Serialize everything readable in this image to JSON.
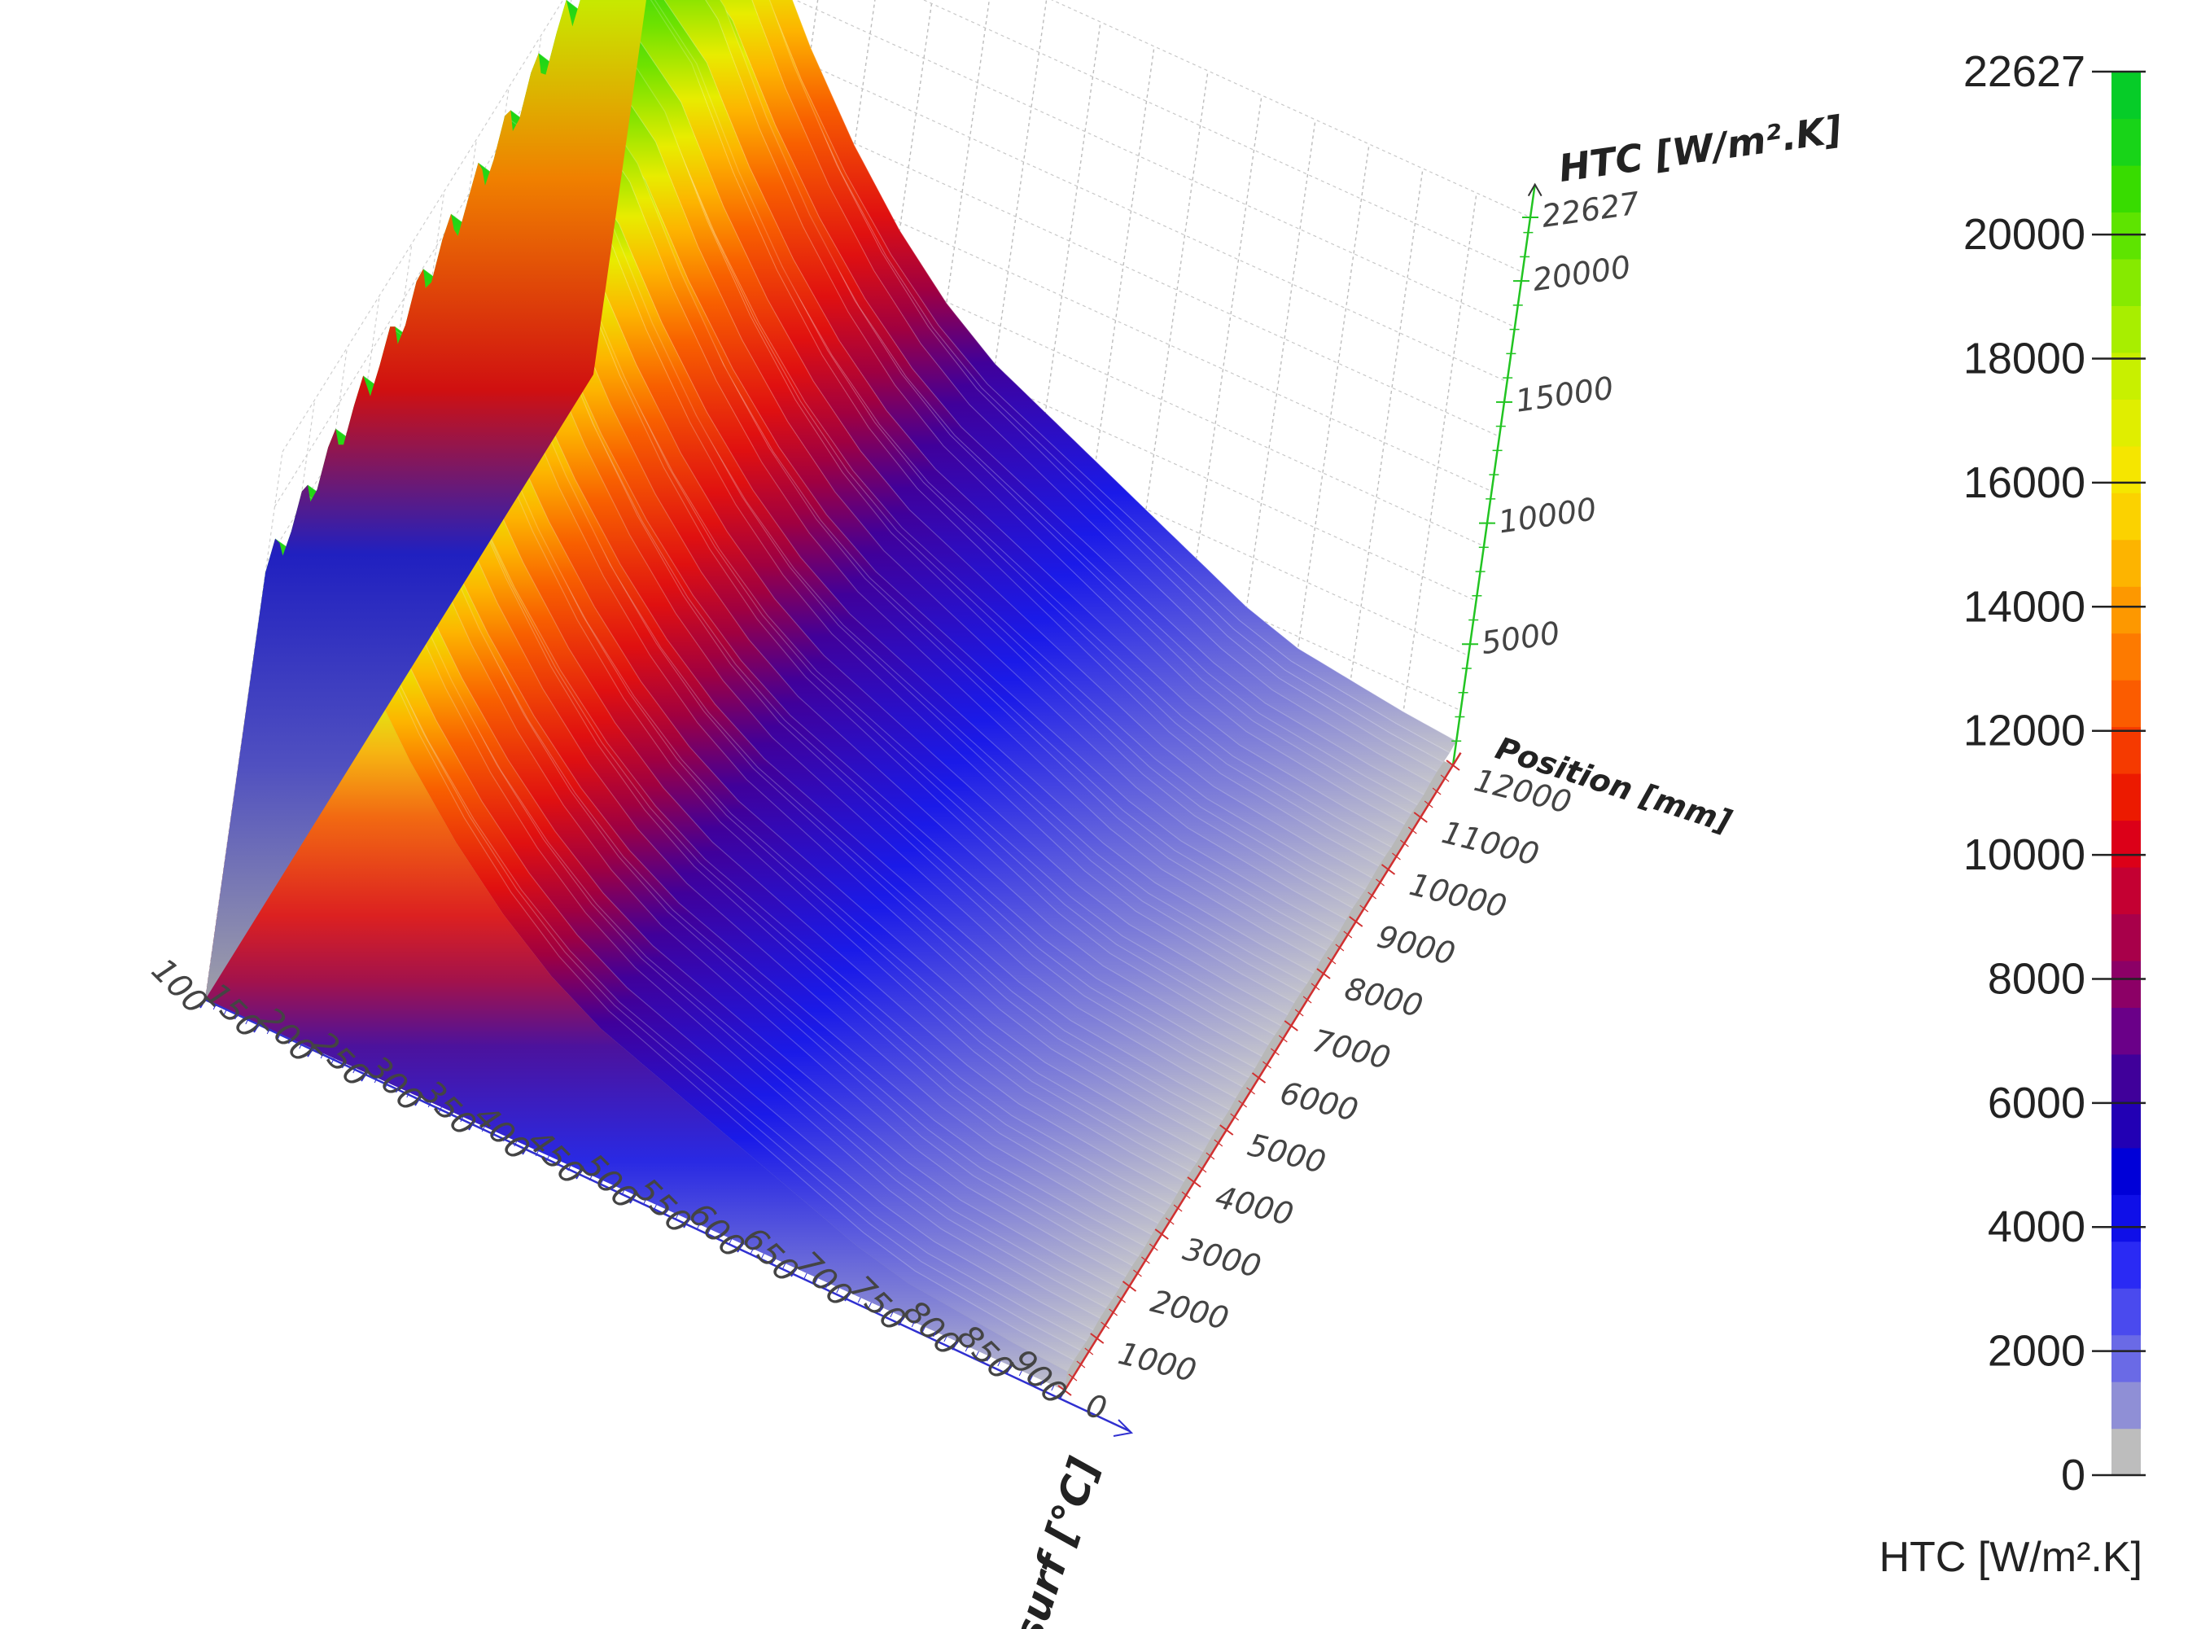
{
  "chart_data": {
    "type": "surface3d",
    "z_axis": {
      "label": "HTC [W/m².K]",
      "range": [
        0,
        22627
      ],
      "ticks": [
        "22627",
        "20000",
        "15000",
        "10000",
        "5000"
      ]
    },
    "y_axis": {
      "label": "Position [mm]",
      "range": [
        0,
        12000
      ],
      "ticks": [
        "12000",
        "11000",
        "10000",
        "9000",
        "8000",
        "7000",
        "6000",
        "5000",
        "4000",
        "3000",
        "2000",
        "1000",
        "0"
      ]
    },
    "x_axis": {
      "label": "Tsurf [°C]",
      "range": [
        100,
        900
      ],
      "ticks": [
        "100",
        "150",
        "200",
        "250",
        "300",
        "350",
        "400",
        "450",
        "500",
        "550",
        "600",
        "650",
        "700",
        "750",
        "800",
        "850",
        "900"
      ]
    },
    "surface": {
      "tsurf": [
        100,
        150,
        200,
        250,
        300,
        350,
        400,
        450,
        500,
        550,
        600,
        650,
        700,
        750,
        800,
        850,
        900
      ],
      "htc_peak_along_position": [
        22627,
        22000,
        20000,
        16500,
        13500,
        11000,
        9000,
        7500,
        6500,
        5500,
        4500,
        3500,
        2500,
        1800,
        1500,
        1200,
        1000
      ]
    },
    "colorbar": {
      "label": "HTC [W/m².K]",
      "ticks": [
        "22627",
        "20000",
        "18000",
        "16000",
        "14000",
        "12000",
        "10000",
        "8000",
        "6000",
        "4000",
        "2000",
        "0"
      ],
      "colors": [
        "#bdbdbd",
        "#8f8fd6",
        "#6a6ae6",
        "#4a4aee",
        "#2a2af4",
        "#0f0fe8",
        "#0000d8",
        "#2200b4",
        "#40009a",
        "#6a0088",
        "#8c0066",
        "#a8004a",
        "#c40032",
        "#dc0018",
        "#ec1a00",
        "#f53a00",
        "#fb5c00",
        "#fd7a00",
        "#fd9800",
        "#fdb400",
        "#fbd200",
        "#f5e600",
        "#e0ee00",
        "#c8f000",
        "#a8ee00",
        "#86ea00",
        "#5ee400",
        "#38dc00",
        "#18d418",
        "#06cc28"
      ]
    }
  }
}
